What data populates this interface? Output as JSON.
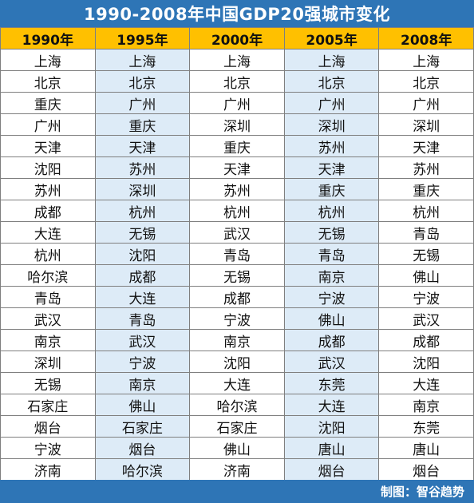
{
  "title": "1990-2008年中国GDP20强城市变化",
  "headers": [
    "1990年",
    "1995年",
    "2000年",
    "2005年",
    "2008年"
  ],
  "rows": [
    [
      "上海",
      "上海",
      "上海",
      "上海",
      "上海"
    ],
    [
      "北京",
      "北京",
      "北京",
      "北京",
      "北京"
    ],
    [
      "重庆",
      "广州",
      "广州",
      "广州",
      "广州"
    ],
    [
      "广州",
      "重庆",
      "深圳",
      "深圳",
      "深圳"
    ],
    [
      "天津",
      "天津",
      "重庆",
      "苏州",
      "天津"
    ],
    [
      "沈阳",
      "苏州",
      "天津",
      "天津",
      "苏州"
    ],
    [
      "苏州",
      "深圳",
      "苏州",
      "重庆",
      "重庆"
    ],
    [
      "成都",
      "杭州",
      "杭州",
      "杭州",
      "杭州"
    ],
    [
      "大连",
      "无锡",
      "武汉",
      "无锡",
      "青岛"
    ],
    [
      "杭州",
      "沈阳",
      "青岛",
      "青岛",
      "无锡"
    ],
    [
      "哈尔滨",
      "成都",
      "无锡",
      "南京",
      "佛山"
    ],
    [
      "青岛",
      "大连",
      "成都",
      "宁波",
      "宁波"
    ],
    [
      "武汉",
      "青岛",
      "宁波",
      "佛山",
      "武汉"
    ],
    [
      "南京",
      "武汉",
      "南京",
      "成都",
      "成都"
    ],
    [
      "深圳",
      "宁波",
      "沈阳",
      "武汉",
      "沈阳"
    ],
    [
      "无锡",
      "南京",
      "大连",
      "东莞",
      "大连"
    ],
    [
      "石家庄",
      "佛山",
      "哈尔滨",
      "大连",
      "南京"
    ],
    [
      "烟台",
      "石家庄",
      "石家庄",
      "沈阳",
      "东莞"
    ],
    [
      "宁波",
      "烟台",
      "佛山",
      "唐山",
      "唐山"
    ],
    [
      "济南",
      "哈尔滨",
      "济南",
      "烟台",
      "烟台"
    ]
  ],
  "footer": "制图：智谷趋势",
  "colors": {
    "title_bg": "#2e75b6",
    "header_bg": "#ffc000",
    "alt_column_bg": "#ddebf7",
    "border": "#7f7f7f"
  }
}
